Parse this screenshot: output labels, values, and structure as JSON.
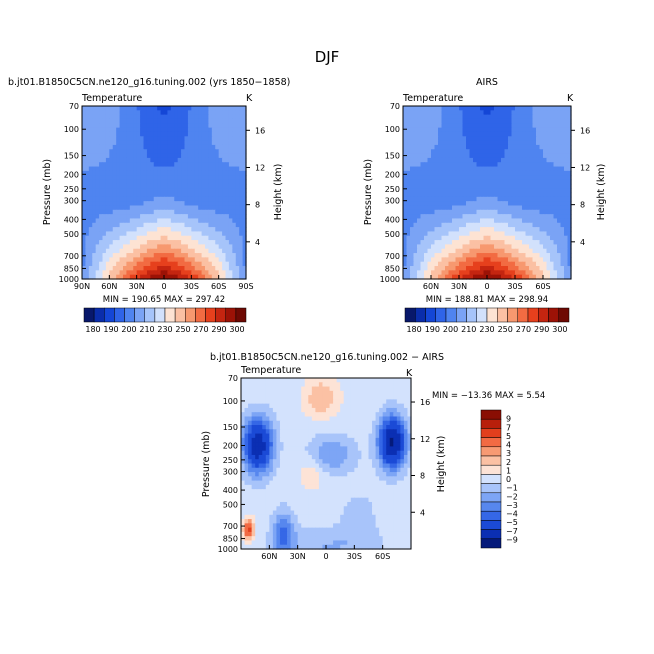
{
  "title": "DJF",
  "palettes": {
    "abs": [
      "#08186b",
      "#0a2dab",
      "#1446d6",
      "#2f64e8",
      "#4f84f0",
      "#7aa3f5",
      "#a6c4fa",
      "#d2e1fc",
      "#fde3d3",
      "#fbc0a3",
      "#f7986f",
      "#f26b42",
      "#e6401d",
      "#c42510",
      "#9c1206",
      "#6e0903"
    ],
    "diff": [
      "#051a7a",
      "#0b2fb3",
      "#1b4ad6",
      "#3567e6",
      "#5787ee",
      "#7da5f5",
      "#a8c4fa",
      "#d3e2fd",
      "#fde3d6",
      "#fbc1a4",
      "#f79a73",
      "#f26a43",
      "#e23f1d",
      "#b81f0b",
      "#8a0e03"
    ]
  },
  "chart_data": [
    {
      "type": "heatmap",
      "title": "b.jt01.B1850C5CN.ne120_g16.tuning.002 (yrs 1850−1858)",
      "left_label": "Temperature",
      "right_label": "K",
      "ylabel": "Pressure (mb)",
      "y2label": "Height (km)",
      "x_ticks": [
        "90N",
        "60N",
        "30N",
        "0",
        "30S",
        "60S",
        "90S"
      ],
      "y_ticks": [
        "70",
        "100",
        "150",
        "200",
        "250",
        "300",
        "400",
        "500",
        "700",
        "850",
        "1000"
      ],
      "y2_ticks": [
        "16",
        "12",
        "8",
        "4"
      ],
      "stats": "MIN = 190.65   MAX = 297.42",
      "min": 190.65,
      "max": 297.42,
      "colorbar_labels": [
        "180",
        "190",
        "200",
        "210",
        "230",
        "250",
        "270",
        "290",
        "300"
      ]
    },
    {
      "type": "heatmap",
      "title": "AIRS",
      "left_label": "Temperature",
      "right_label": "K",
      "ylabel": "Pressure (mb)",
      "y2label": "Height (km)",
      "x_ticks": [
        "60N",
        "30N",
        "0",
        "30S",
        "60S"
      ],
      "y_ticks": [
        "70",
        "100",
        "150",
        "200",
        "250",
        "300",
        "400",
        "500",
        "700",
        "850",
        "1000"
      ],
      "y2_ticks": [
        "16",
        "12",
        "8",
        "4"
      ],
      "stats": "MIN = 188.81   MAX = 298.94",
      "min": 188.81,
      "max": 298.94,
      "colorbar_labels": [
        "180",
        "190",
        "200",
        "210",
        "230",
        "250",
        "270",
        "290",
        "300"
      ]
    },
    {
      "type": "heatmap",
      "title": "b.jt01.B1850C5CN.ne120_g16.tuning.002 − AIRS",
      "left_label": "Temperature",
      "right_label": "K",
      "ylabel": "Pressure (mb)",
      "y2label": "Height (km)",
      "x_ticks": [
        "60N",
        "30N",
        "0",
        "30S",
        "60S"
      ],
      "y_ticks": [
        "70",
        "100",
        "150",
        "200",
        "250",
        "300",
        "400",
        "500",
        "700",
        "850",
        "1000"
      ],
      "y2_ticks": [
        "16",
        "12",
        "8",
        "4"
      ],
      "stats": "MIN = −13.36   MAX =    5.54",
      "min": -13.36,
      "max": 5.54,
      "colorbar_labels": [
        "9",
        "7",
        "5",
        "4",
        "3",
        "2",
        "1",
        "0",
        "−1",
        "−2",
        "−3",
        "−4",
        "−5",
        "−7",
        "−9"
      ]
    }
  ]
}
